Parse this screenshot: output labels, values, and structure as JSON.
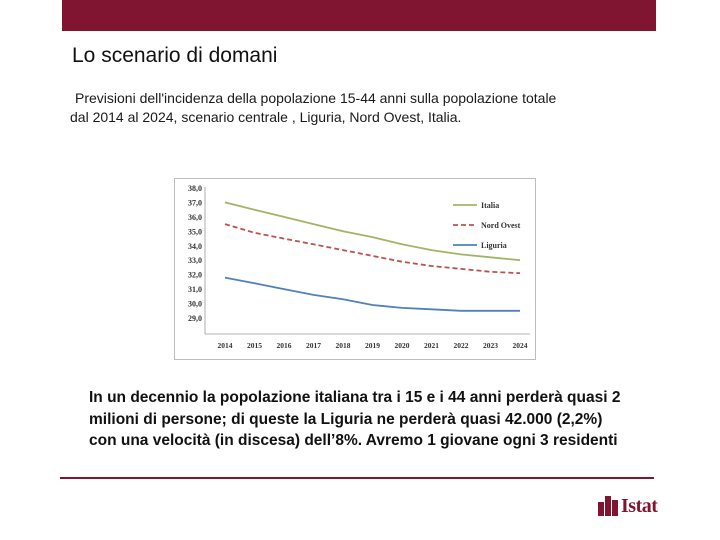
{
  "slide": {
    "title": "Lo scenario di domani",
    "subtitle_line1": "Previsioni dell'incidenza della popolazione 15-44 anni sulla popolazione totale",
    "subtitle_line2": "dal 2014 al 2024, scenario centrale , Liguria, Nord Ovest, Italia.",
    "body": "In un decennio la popolazione italiana tra i 15 e i 44 anni perderà quasi 2 milioni di persone; di queste la Liguria ne perderà quasi 42.000 (2,2%) con una velocità (in discesa) dell’8%. Avremo 1 giovane ogni 3 residenti",
    "logo_text": "Istat"
  },
  "colors": {
    "brand": "#7f1530",
    "italia": "#a4b465",
    "nord_ovest": "#c0504d",
    "liguria": "#4f81bd"
  },
  "chart_data": {
    "type": "line",
    "title": "",
    "xlabel": "",
    "ylabel": "",
    "ylim": [
      29.0,
      38.0
    ],
    "yticks": [
      "38,0",
      "37,0",
      "36,0",
      "35,0",
      "34,0",
      "33,0",
      "32,0",
      "31,0",
      "30,0",
      "29,0"
    ],
    "x": [
      "2014",
      "2015",
      "2016",
      "2017",
      "2018",
      "2019",
      "2020",
      "2021",
      "2022",
      "2023",
      "2024"
    ],
    "series": [
      {
        "name": "Italia",
        "style": "solid",
        "values": [
          37.0,
          36.5,
          36.0,
          35.5,
          35.0,
          34.6,
          34.1,
          33.7,
          33.4,
          33.2,
          33.0
        ]
      },
      {
        "name": "Nord Ovest",
        "style": "dashed",
        "values": [
          35.5,
          34.9,
          34.5,
          34.1,
          33.7,
          33.3,
          32.9,
          32.6,
          32.4,
          32.2,
          32.1
        ]
      },
      {
        "name": "Liguria",
        "style": "solid",
        "values": [
          31.8,
          31.4,
          31.0,
          30.6,
          30.3,
          29.9,
          29.7,
          29.6,
          29.5,
          29.5,
          29.5
        ]
      }
    ],
    "legend_position": "top-right",
    "grid": false
  }
}
